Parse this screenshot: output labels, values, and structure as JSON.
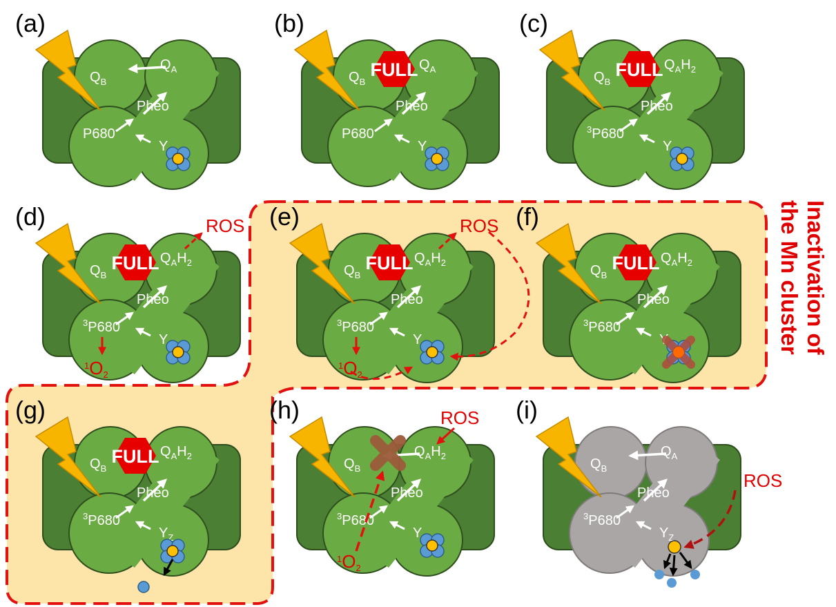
{
  "panels": [
    {
      "label": "(a)",
      "full": null,
      "qa": "A",
      "qa_h2": false,
      "p680_triplet": false,
      "extras": []
    },
    {
      "label": "(b)",
      "full": "FULL",
      "qa": "A",
      "qa_h2": false,
      "p680_triplet": false,
      "extras": []
    },
    {
      "label": "(c)",
      "full": "FULL",
      "qa": "A",
      "qa_h2": true,
      "p680_triplet": true,
      "extras": []
    },
    {
      "label": "(d)",
      "full": "FULL",
      "qa": "A",
      "qa_h2": true,
      "p680_triplet": true,
      "extras": [
        "ros",
        "singlet_o2"
      ]
    },
    {
      "label": "(e)",
      "full": "FULL",
      "qa": "A",
      "qa_h2": true,
      "p680_triplet": true,
      "extras": [
        "ros",
        "singlet_o2",
        "ros_attack_mn"
      ]
    },
    {
      "label": "(f)",
      "full": "FULL",
      "qa": "A",
      "qa_h2": true,
      "p680_triplet": true,
      "extras": [
        "mn_inactivated"
      ]
    },
    {
      "label": "(g)",
      "full": "FULL",
      "qa": "A",
      "qa_h2": true,
      "p680_triplet": true,
      "extras": [
        "mn_release"
      ]
    },
    {
      "label": "(h)",
      "full": null,
      "qa": "A",
      "qa_h2": true,
      "p680_triplet": true,
      "extras": [
        "ros_in",
        "singlet_o2_attack",
        "qb_destroyed"
      ]
    },
    {
      "label": "(i)",
      "full": null,
      "qa": "A",
      "qa_h2": false,
      "p680_triplet": true,
      "extras": [
        "grey",
        "mn_release_ros"
      ]
    }
  ],
  "text": {
    "qb": "Q",
    "qb_sub": "B",
    "qa": "Q",
    "qa_sub": "A",
    "h2": "H",
    "h2_sub": "2",
    "pheo": "Pheo",
    "p680": "P680",
    "triplet_sup": "3",
    "yz": "Y",
    "yz_sub": "Z",
    "full": "FULL",
    "ros": "ROS",
    "o2": "O",
    "o2_sub": "2",
    "singlet_sup": "1",
    "side_line1": "Inactivation of",
    "side_line2": "the Mn cluster"
  },
  "colors": {
    "dark_green": "#4b7f34",
    "light_green": "#6aab43",
    "outline": "#2f4f1f",
    "grey": "#aaa6a6",
    "full_red": "#e60000",
    "bolt": "#f7b500",
    "highlight": "#fde4a8",
    "dash_red": "#e31010",
    "mn_blue": "#5b9bd5",
    "mn_yellow": "#ffc000"
  }
}
